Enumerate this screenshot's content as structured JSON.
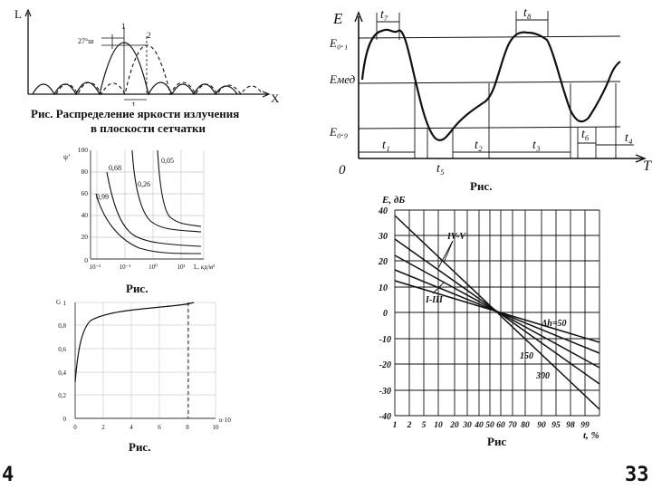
{
  "fig1": {
    "axis_y": "L",
    "axis_x": "X",
    "peak_labels": [
      "1",
      "2"
    ],
    "dim_label": "27°ш",
    "tau_label": "τ",
    "caption_line1": "Рис.   Распределение яркости излучения",
    "caption_line2": "в плоскости сетчатки"
  },
  "fig2": {
    "y_label": "ψ’",
    "x_label": "L, кд/м²",
    "y_ticks": [
      "100",
      "80",
      "60",
      "40",
      "20",
      "0"
    ],
    "x_ticks": [
      "10⁻²",
      "10⁻¹",
      "10⁰",
      "10¹",
      "10²"
    ],
    "curve_labels": [
      "0,68",
      "0,05",
      "0,26",
      "0,99"
    ],
    "caption": "Рис."
  },
  "fig3": {
    "y_ticks": [
      "1",
      "0,8",
      "0,6",
      "0,4",
      "0,2",
      "0"
    ],
    "x_ticks": [
      "0",
      "2",
      "4",
      "6",
      "8",
      "10"
    ],
    "y_label": "G",
    "x_label": "n·10",
    "caption": "Рис."
  },
  "fig4": {
    "y_label": "E",
    "x_label": "T",
    "origin": "0",
    "y_levels": [
      "E₀.₁",
      "Eмед",
      "E₀.₉"
    ],
    "t_labels": [
      "t₇",
      "t₈",
      "t₁",
      "t₂",
      "t₃",
      "t₄",
      "t₅",
      "t₆"
    ],
    "caption": "Рис."
  },
  "fig5": {
    "y_label": "E, дБ",
    "x_label": "t, %",
    "y_ticks": [
      "40",
      "30",
      "20",
      "10",
      "0",
      "-10",
      "-20",
      "-30",
      "-40"
    ],
    "x_ticks": [
      "1",
      "2",
      "5",
      "10",
      "20",
      "30",
      "40",
      "50",
      "60",
      "70",
      "80",
      "90",
      "95",
      "98",
      "99"
    ],
    "line_labels": [
      "IV-V",
      "I-III",
      "Δh=50",
      "150",
      "300"
    ],
    "caption": "Рис"
  },
  "pages": {
    "left": "4",
    "right": "33"
  }
}
